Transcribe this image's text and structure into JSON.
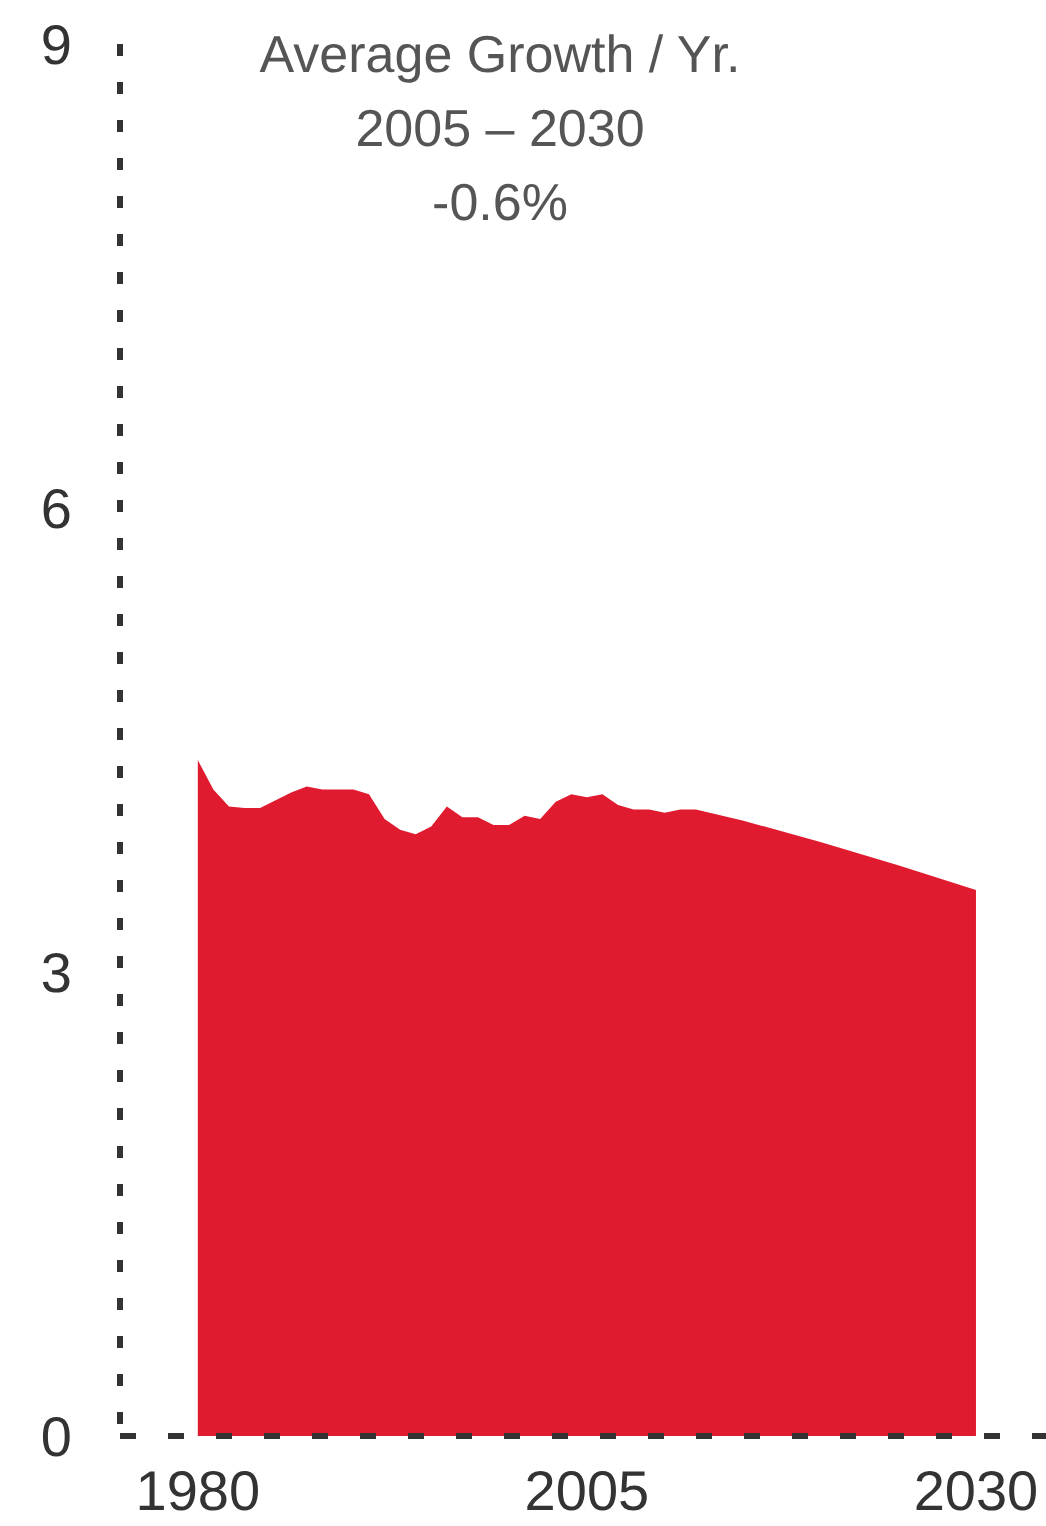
{
  "chart_data": {
    "type": "area",
    "annotations": [
      "Average Growth / Yr.",
      "2005 – 2030",
      "-0.6%"
    ],
    "x": [
      1980,
      1981,
      1982,
      1983,
      1984,
      1985,
      1986,
      1987,
      1988,
      1989,
      1990,
      1991,
      1992,
      1993,
      1994,
      1995,
      1996,
      1997,
      1998,
      1999,
      2000,
      2001,
      2002,
      2003,
      2004,
      2005,
      2006,
      2007,
      2008,
      2009,
      2010,
      2011,
      2012,
      2015,
      2020,
      2025,
      2030
    ],
    "series": [
      {
        "color": "#e11b2f",
        "values": [
          4.37,
          4.18,
          4.07,
          4.06,
          4.06,
          4.11,
          4.16,
          4.2,
          4.18,
          4.18,
          4.18,
          4.15,
          3.99,
          3.92,
          3.89,
          3.94,
          4.07,
          4.0,
          4.0,
          3.95,
          3.95,
          4.01,
          3.99,
          4.1,
          4.15,
          4.13,
          4.15,
          4.08,
          4.05,
          4.05,
          4.03,
          4.05,
          4.05,
          3.98,
          3.84,
          3.69,
          3.53
        ]
      }
    ],
    "xlim": [
      1975,
      2034.5
    ],
    "ylim": [
      0,
      9
    ],
    "xticks": [
      1980,
      2005,
      2030
    ],
    "yticks": [
      0,
      3,
      6,
      9
    ]
  }
}
